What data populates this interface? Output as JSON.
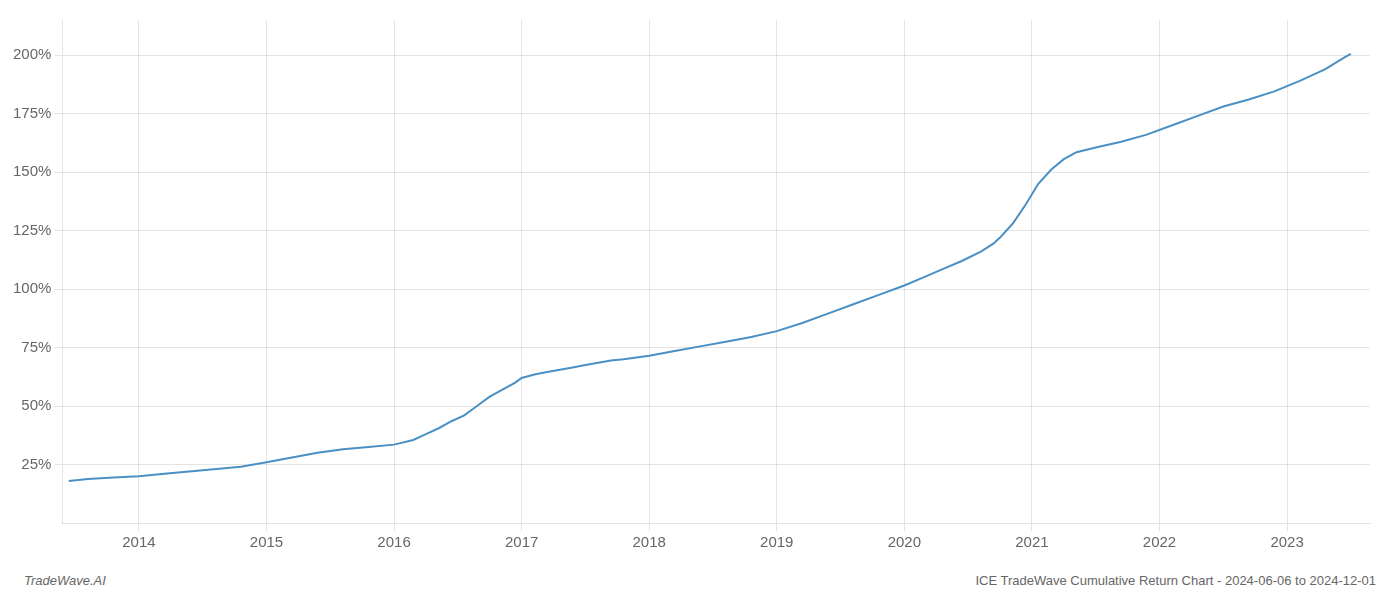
{
  "chart_data": {
    "type": "line",
    "title": "ICE TradeWave Cumulative Return Chart - 2024-06-06 to 2024-12-01",
    "annotations": [
      "TradeWave.AI"
    ],
    "color": "#4a90c4",
    "grid": true,
    "x": [
      2013.45,
      2013.6,
      2013.8,
      2014.0,
      2014.2,
      2014.5,
      2014.8,
      2015.0,
      2015.2,
      2015.4,
      2015.6,
      2015.8,
      2016.0,
      2016.15,
      2016.25,
      2016.35,
      2016.45,
      2016.55,
      2016.65,
      2016.75,
      2016.85,
      2016.95,
      2017.0,
      2017.1,
      2017.2,
      2017.3,
      2017.4,
      2017.5,
      2017.6,
      2017.7,
      2017.8,
      2018.0,
      2018.2,
      2018.4,
      2018.6,
      2018.8,
      2019.0,
      2019.2,
      2019.4,
      2019.6,
      2019.8,
      2020.0,
      2020.15,
      2020.3,
      2020.45,
      2020.6,
      2020.7,
      2020.75,
      2020.85,
      2020.95,
      2021.05,
      2021.15,
      2021.25,
      2021.35,
      2021.5,
      2021.7,
      2021.9,
      2022.1,
      2022.3,
      2022.5,
      2022.7,
      2022.9,
      2023.1,
      2023.3,
      2023.45,
      2023.5
    ],
    "values": [
      18.0,
      18.8,
      19.5,
      20.0,
      21.0,
      22.5,
      24.0,
      26.0,
      28.0,
      30.0,
      31.5,
      32.5,
      33.5,
      35.5,
      38.0,
      40.5,
      43.5,
      46.0,
      50.0,
      54.0,
      57.0,
      60.0,
      62.0,
      63.5,
      64.5,
      65.5,
      66.5,
      67.5,
      68.5,
      69.5,
      70.0,
      71.5,
      73.5,
      75.5,
      77.5,
      79.5,
      82.0,
      85.5,
      89.5,
      93.5,
      97.5,
      101.5,
      105.0,
      108.5,
      112.0,
      116.0,
      119.5,
      122.0,
      128.0,
      136.0,
      145.0,
      151.0,
      155.5,
      158.5,
      160.5,
      163.0,
      166.0,
      170.0,
      174.0,
      178.0,
      181.0,
      184.5,
      189.0,
      194.0,
      199.0,
      200.5
    ],
    "xlim": [
      2013.4,
      2023.65
    ],
    "xticks": [
      2014,
      2015,
      2016,
      2017,
      2018,
      2019,
      2020,
      2021,
      2022,
      2023
    ],
    "ylim": [
      0,
      215
    ],
    "yticks": [
      {
        "value": 25,
        "label": "25%"
      },
      {
        "value": 50,
        "label": "50%"
      },
      {
        "value": 75,
        "label": "75%"
      },
      {
        "value": 100,
        "label": "100%"
      },
      {
        "value": 125,
        "label": "125%"
      },
      {
        "value": 150,
        "label": "150%"
      },
      {
        "value": 175,
        "label": "175%"
      },
      {
        "value": 200,
        "label": "200%"
      }
    ]
  }
}
